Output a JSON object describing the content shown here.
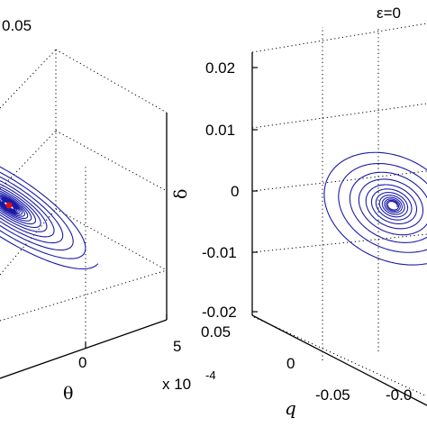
{
  "chart_data": [
    {
      "type": "line",
      "title": "0.05",
      "xlabel": "θ",
      "x_exponent": "x 10",
      "x_exponent_power": "-4",
      "x_ticks": [
        "0",
        "5"
      ],
      "series_color": "#1a1aa8",
      "marker_color": "#e01010",
      "series": [
        {
          "kind": "spiral",
          "center": [
            0,
            0
          ],
          "start_amplitude": 1.0,
          "end_amplitude": 0.05,
          "loops": 17
        }
      ]
    },
    {
      "type": "line",
      "title": "ε=0",
      "xlabel": "q",
      "ylabel": "δ",
      "ylim": [
        -0.02,
        0.02
      ],
      "y_ticks": [
        "0.02",
        "0.01",
        "0",
        "-0.01",
        "-0.02"
      ],
      "x_ticks": [
        "0.05",
        "0",
        "-0.05"
      ],
      "x2_ticks": [
        "-0.0"
      ],
      "series_color": "#1a1aa8",
      "series": [
        {
          "kind": "spiral",
          "center": [
            0,
            0
          ],
          "start_amplitude": 1.0,
          "end_amplitude": 0.06,
          "loops": 12
        }
      ]
    }
  ]
}
